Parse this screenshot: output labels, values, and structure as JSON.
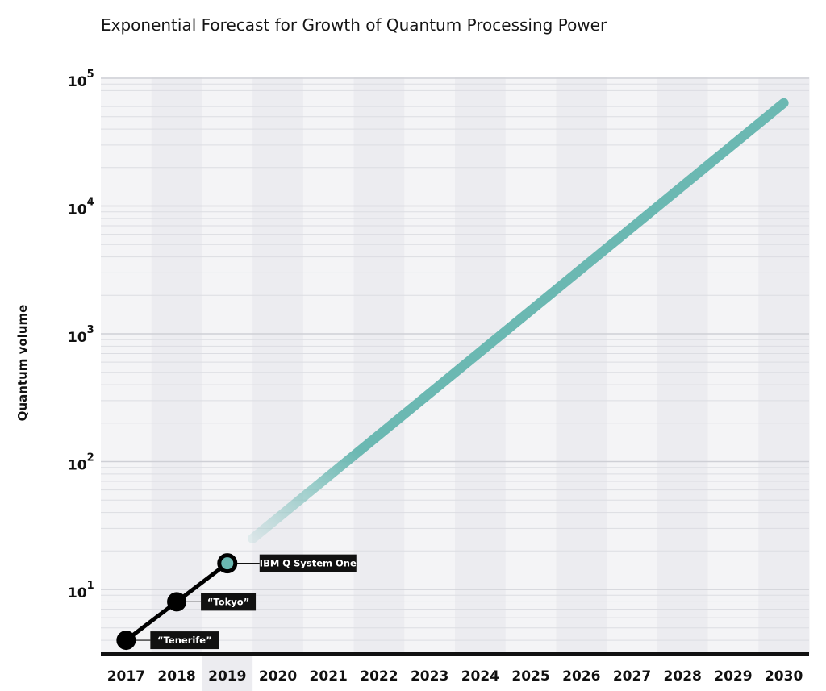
{
  "chart_data": {
    "type": "line",
    "title": "Exponential Forecast for Growth of Quantum Processing Power",
    "xlabel": "",
    "ylabel": "Quantum volume",
    "y_scale": "log",
    "ylim": [
      3,
      100000
    ],
    "y_ticks": [
      {
        "base": "10",
        "exp": "1",
        "value": 10
      },
      {
        "base": "10",
        "exp": "2",
        "value": 100
      },
      {
        "base": "10",
        "exp": "3",
        "value": 1000
      },
      {
        "base": "10",
        "exp": "4",
        "value": 10000
      },
      {
        "base": "10",
        "exp": "5",
        "value": 100000
      }
    ],
    "x_ticks": [
      "2017",
      "2018",
      "2019",
      "2020",
      "2021",
      "2022",
      "2023",
      "2024",
      "2025",
      "2026",
      "2027",
      "2028",
      "2029",
      "2030"
    ],
    "highlighted_year": "2019",
    "grid": true,
    "series": [
      {
        "type": "measured",
        "color": "#000000",
        "points": [
          {
            "x": 2017,
            "y": 4,
            "label": "“Tenerife”"
          },
          {
            "x": 2018,
            "y": 8,
            "label": "“Tokyo”"
          },
          {
            "x": 2019,
            "y": 16,
            "label": "IBM Q System One"
          }
        ]
      },
      {
        "type": "forecast",
        "color": "#6bb8b2",
        "points": [
          {
            "x": 2019.5,
            "y": 25
          },
          {
            "x": 2030,
            "y": 64000
          }
        ]
      }
    ]
  }
}
